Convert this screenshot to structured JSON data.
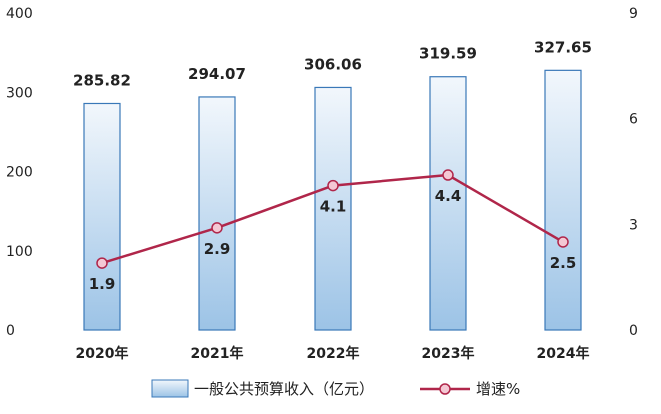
{
  "chart_data": {
    "type": "bar",
    "categories": [
      "2020年",
      "2021年",
      "2022年",
      "2023年",
      "2024年"
    ],
    "series": [
      {
        "name": "一般公共预算收入（亿元）",
        "type": "bar",
        "axis": "left",
        "values": [
          285.82,
          294.07,
          306.06,
          319.59,
          327.65
        ],
        "value_labels": [
          "285.82",
          "294.07",
          "306.06",
          "319.59",
          "327.65"
        ]
      },
      {
        "name": "增速%",
        "type": "line",
        "axis": "right",
        "values": [
          1.9,
          2.9,
          4.1,
          4.4,
          2.5
        ],
        "value_labels": [
          "1.9",
          "2.9",
          "4.1",
          "4.4",
          "2.5"
        ]
      }
    ],
    "y_left": {
      "lim": [
        0,
        400
      ],
      "ticks": [
        "0",
        "100",
        "200",
        "300",
        "400"
      ]
    },
    "y_right": {
      "lim": [
        0,
        9
      ],
      "ticks": [
        "0",
        "3",
        "6",
        "9"
      ]
    },
    "grid": false,
    "legend": "bottom",
    "colors": {
      "bar_edge": "#3a78b8",
      "bar_fill_top": "#f2f7fc",
      "bar_fill_bottom": "#9cc3e6",
      "line": "#b0264a",
      "marker_fill": "#f4c8d4"
    }
  }
}
